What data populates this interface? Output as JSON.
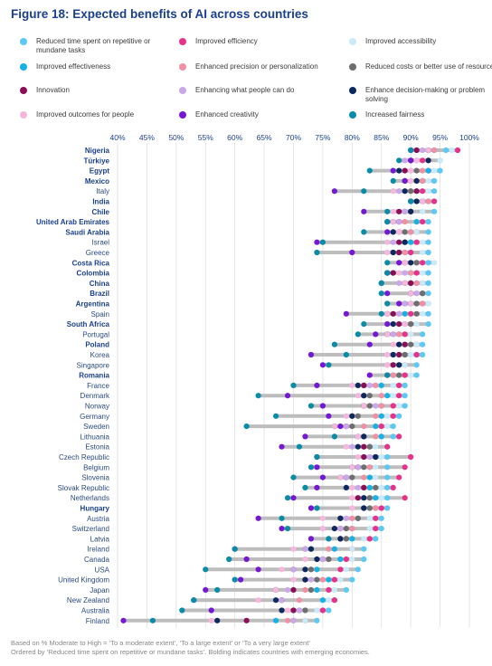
{
  "title": "Figure 18: Expected benefits of AI across countries",
  "footer": {
    "line1": "Based on % Moderate to High = ‘To a moderate extent’, ‘To a large extent’ or ‘To a very large extent’",
    "line2": "Ordered by ‘Reduced time spent on repetitive or mundane tasks’. Bolding indicates countries with emerging economies."
  },
  "chart_data": {
    "type": "scatter",
    "title": "Figure 18: Expected benefits of AI across countries",
    "xlabel": "",
    "ylabel": "",
    "xlim": [
      40,
      100
    ],
    "x_ticks": [
      "40%",
      "45%",
      "50%",
      "55%",
      "60%",
      "65%",
      "70%",
      "75%",
      "80%",
      "85%",
      "90%",
      "95%",
      "100%"
    ],
    "grid": true,
    "legend_position": "top",
    "categories": [
      "Nigeria",
      "Türkiye",
      "Egypt",
      "Mexico",
      "Italy",
      "India",
      "Chile",
      "United Arab Emirates",
      "Saudi Arabia",
      "Israel",
      "Greece",
      "Costa Rica",
      "Colombia",
      "China",
      "Brazil",
      "Argentina",
      "Spain",
      "South Africa",
      "Portugal",
      "Poland",
      "Korea",
      "Singapore",
      "Romania",
      "France",
      "Denmark",
      "Norway",
      "Germany",
      "Sweden",
      "Lithuania",
      "Estonia",
      "Czech Republic",
      "Belgium",
      "Slovenia",
      "Slovak Republic",
      "Netherlands",
      "Hungary",
      "Austria",
      "Switzerland",
      "Latvia",
      "Ireland",
      "Canada",
      "USA",
      "United Kingdom",
      "Japan",
      "New Zealand",
      "Australia",
      "Finland"
    ],
    "emerging": [
      "Nigeria",
      "Türkiye",
      "Egypt",
      "Mexico",
      "India",
      "Chile",
      "United Arab Emirates",
      "Saudi Arabia",
      "Costa Rica",
      "Colombia",
      "China",
      "Brazil",
      "Argentina",
      "South Africa",
      "Poland",
      "Romania",
      "Hungary"
    ],
    "series": [
      {
        "name": "Reduced time spent on repetitive or mundane tasks",
        "color": "#5bc8f5",
        "values": [
          96,
          95,
          95,
          94,
          94,
          94,
          94,
          93,
          93,
          93,
          93,
          93,
          93,
          93,
          93,
          93,
          93,
          93,
          92,
          92,
          92,
          91,
          91,
          89,
          89,
          89,
          88,
          87,
          87,
          86,
          86,
          86,
          86,
          86,
          86,
          86,
          85,
          85,
          84,
          82,
          82,
          81,
          80,
          79,
          77,
          76,
          74
        ]
      },
      {
        "name": "Improved efficiency",
        "color": "#e8318b",
        "values": [
          98,
          92,
          93,
          92,
          92,
          94,
          90,
          92,
          91,
          91,
          90,
          92,
          91,
          92,
          92,
          92,
          90,
          90,
          89,
          91,
          91,
          89,
          89,
          88,
          88,
          87,
          87,
          85,
          88,
          86,
          90,
          89,
          88,
          87,
          89,
          85,
          84,
          84,
          83,
          80,
          79,
          78,
          77,
          76,
          77,
          75,
          72
        ]
      },
      {
        "name": "Improved accessibility",
        "color": "#c9eaf8",
        "values": [
          97,
          95,
          94,
          93,
          93,
          93,
          92,
          91,
          91,
          92,
          92,
          94,
          92,
          92,
          91,
          93,
          92,
          91,
          90,
          91,
          90,
          89,
          90,
          87,
          87,
          88,
          86,
          86,
          85,
          84,
          85,
          84,
          84,
          85,
          85,
          84,
          83,
          83,
          82,
          80,
          80,
          79,
          78,
          77,
          76,
          74,
          72
        ]
      },
      {
        "name": "Improved effectiveness",
        "color": "#16b1e5",
        "values": [
          94,
          91,
          93,
          92,
          91,
          93,
          89,
          91,
          90,
          90,
          89,
          91,
          90,
          91,
          92,
          91,
          89,
          89,
          88,
          89,
          89,
          87,
          87,
          85,
          86,
          85,
          85,
          84,
          85,
          83,
          84,
          83,
          83,
          83,
          84,
          84,
          81,
          80,
          80,
          77,
          78,
          74,
          76,
          74,
          75,
          71,
          67
        ]
      },
      {
        "name": "Enhanced precision or personalization",
        "color": "#f18fa3",
        "values": [
          94,
          90,
          92,
          92,
          90,
          93,
          89,
          89,
          90,
          89,
          89,
          91,
          90,
          91,
          91,
          92,
          88,
          90,
          88,
          89,
          88,
          87,
          87,
          84,
          85,
          85,
          84,
          82,
          84,
          82,
          84,
          83,
          82,
          82,
          83,
          84,
          80,
          80,
          79,
          76,
          76,
          73,
          75,
          72,
          71,
          71,
          69
        ]
      },
      {
        "name": "Reduced costs or better use of resources",
        "color": "#6e6e6e",
        "values": [
          93,
          93,
          91,
          91,
          90,
          92,
          90,
          88,
          89,
          89,
          88,
          91,
          87,
          90,
          92,
          91,
          91,
          90,
          87,
          90,
          89,
          88,
          88,
          82,
          83,
          83,
          81,
          80,
          82,
          83,
          84,
          82,
          80,
          84,
          83,
          83,
          81,
          79,
          79,
          73,
          76,
          73,
          74,
          73,
          68,
          72,
          70
        ]
      },
      {
        "name": "Innovation",
        "color": "#8b0f56",
        "values": [
          91,
          90,
          89,
          89,
          91,
          92,
          88,
          88,
          88,
          88,
          88,
          89,
          87,
          90,
          90,
          89,
          87,
          88,
          86,
          89,
          88,
          87,
          86,
          82,
          82,
          82,
          80,
          79,
          81,
          82,
          82,
          81,
          79,
          82,
          81,
          82,
          78,
          78,
          78,
          72,
          75,
          70,
          72,
          70,
          68,
          70,
          62
        ]
      },
      {
        "name": "Enhancing what people can do",
        "color": "#c8a7ea",
        "values": [
          92,
          89,
          90,
          90,
          88,
          90,
          89,
          88,
          88,
          87,
          87,
          88,
          89,
          88,
          91,
          89,
          88,
          86,
          87,
          88,
          87,
          86,
          86,
          83,
          82,
          84,
          80,
          79,
          81,
          80,
          83,
          81,
          79,
          81,
          82,
          82,
          79,
          78,
          78,
          72,
          75,
          70,
          73,
          69,
          68,
          71,
          70
        ]
      },
      {
        "name": "Enhance decision-making or problem solving",
        "color": "#0d2a5e",
        "values": [
          93,
          93,
          88,
          91,
          89,
          91,
          90,
          87,
          87,
          89,
          87,
          90,
          86,
          89,
          90,
          90,
          86,
          87,
          86,
          88,
          87,
          88,
          86,
          81,
          82,
          82,
          80,
          77,
          82,
          81,
          84,
          80,
          78,
          79,
          82,
          82,
          78,
          77,
          78,
          73,
          74,
          72,
          72,
          67,
          67,
          68,
          57
        ]
      },
      {
        "name": "Improved outcomes for people",
        "color": "#f6b7dc",
        "values": [
          93,
          91,
          90,
          90,
          87,
          92,
          87,
          87,
          88,
          86,
          86,
          89,
          88,
          89,
          90,
          90,
          86,
          89,
          86,
          87,
          86,
          86,
          86,
          80,
          81,
          82,
          79,
          77,
          81,
          79,
          81,
          80,
          78,
          80,
          80,
          80,
          75,
          75,
          76,
          70,
          72,
          68,
          70,
          67,
          64,
          69,
          56
        ]
      },
      {
        "name": "Enhanced creativity",
        "color": "#7518d3",
        "values": [
          90,
          90,
          87,
          89,
          77,
          90,
          82,
          86,
          86,
          74,
          80,
          88,
          86,
          85,
          86,
          88,
          79,
          86,
          84,
          83,
          73,
          75,
          83,
          74,
          69,
          75,
          76,
          78,
          72,
          68,
          74,
          74,
          75,
          74,
          70,
          73,
          64,
          68,
          73,
          60,
          62,
          64,
          61,
          55,
          53,
          56,
          41
        ]
      },
      {
        "name": "Increased fairness",
        "color": "#088ca8",
        "values": [
          90,
          88,
          83,
          87,
          82,
          90,
          86,
          86,
          82,
          75,
          74,
          86,
          86,
          85,
          85,
          86,
          85,
          82,
          81,
          77,
          79,
          76,
          86,
          70,
          64,
          73,
          67,
          62,
          77,
          71,
          74,
          73,
          70,
          72,
          69,
          74,
          68,
          69,
          76,
          60,
          59,
          55,
          60,
          57,
          53,
          51,
          46
        ]
      }
    ]
  },
  "legend": {
    "items": [
      {
        "label": "Reduced time spent on repetitive or mundane tasks",
        "color": "#5bc8f5"
      },
      {
        "label": "Improved efficiency",
        "color": "#e8318b"
      },
      {
        "label": "Improved accessibility",
        "color": "#c9eaf8"
      },
      {
        "label": "Improved effectiveness",
        "color": "#16b1e5"
      },
      {
        "label": "Enhanced precision or personalization",
        "color": "#f18fa3"
      },
      {
        "label": "Reduced costs or better use of resources",
        "color": "#6e6e6e"
      },
      {
        "label": "Innovation",
        "color": "#8b0f56"
      },
      {
        "label": "Enhancing what people can do",
        "color": "#c8a7ea"
      },
      {
        "label": "Enhance decision-making or problem solving",
        "color": "#0d2a5e"
      },
      {
        "label": "Improved outcomes for people",
        "color": "#f6b7dc"
      },
      {
        "label": "Enhanced creativity",
        "color": "#7518d3"
      },
      {
        "label": "Increased fairness",
        "color": "#088ca8"
      }
    ]
  }
}
